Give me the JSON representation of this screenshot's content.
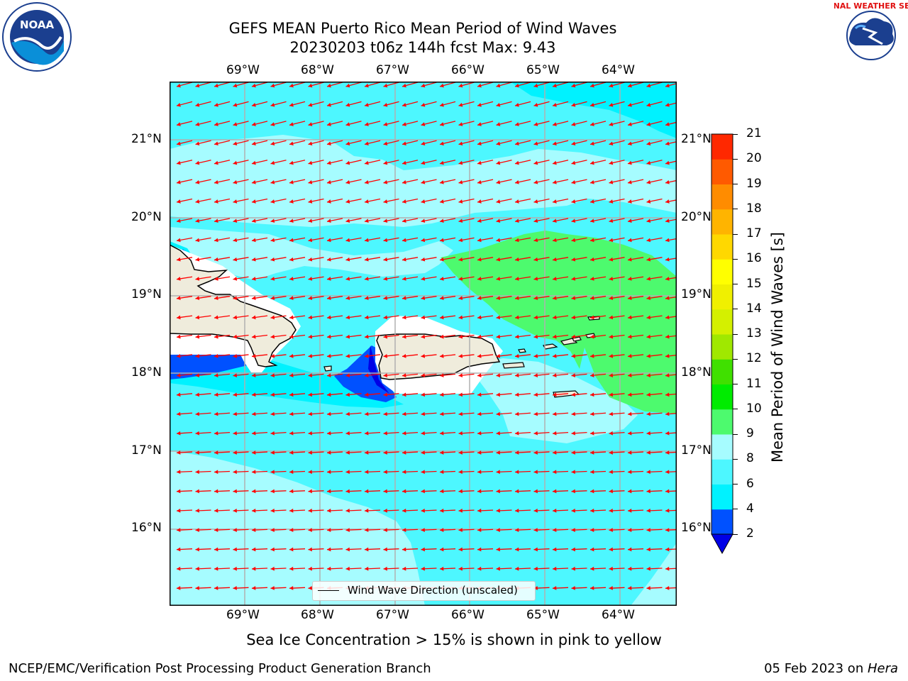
{
  "title_line1": "GEFS MEAN Puerto Rico Mean Period of Wind Waves",
  "title_line2": "20230203 t06z 144h fcst   Max: 9.43",
  "lon_labels": [
    "69°W",
    "68°W",
    "67°W",
    "66°W",
    "65°W",
    "64°W"
  ],
  "lat_labels": [
    "21°N",
    "20°N",
    "19°N",
    "18°N",
    "17°N",
    "16°N"
  ],
  "legend_label": "Wind Wave Direction (unscaled)",
  "colorbar": {
    "title": "Mean Period of Wind Waves [s]",
    "ticks": [
      "2",
      "4",
      "6",
      "8",
      "9",
      "10",
      "11",
      "12",
      "13",
      "14",
      "15",
      "16",
      "17",
      "18",
      "19",
      "20",
      "21"
    ],
    "colors": [
      "#0051ff",
      "#00f2ff",
      "#4df7ff",
      "#a6fcff",
      "#4dfa6e",
      "#00ec00",
      "#40e000",
      "#a0e800",
      "#d4f000",
      "#f0f000",
      "#ffff00",
      "#ffd800",
      "#ffb400",
      "#ff8c00",
      "#ff5a00",
      "#ff2800"
    ],
    "under_color": "#0000e6"
  },
  "subtitle": "Sea Ice Concentration > 15% is shown in pink to yellow",
  "footer_left": "NCEP/EMC/Verification Post Processing Product Generation Branch",
  "footer_right_date": "05 Feb 2023 on ",
  "footer_right_host": "Hera",
  "logo_left_text": "NOAA",
  "logo_right_text": "NATIONAL WEATHER SERVICE",
  "arrow_color": "#ff0000",
  "land_color": "#efecdc"
}
